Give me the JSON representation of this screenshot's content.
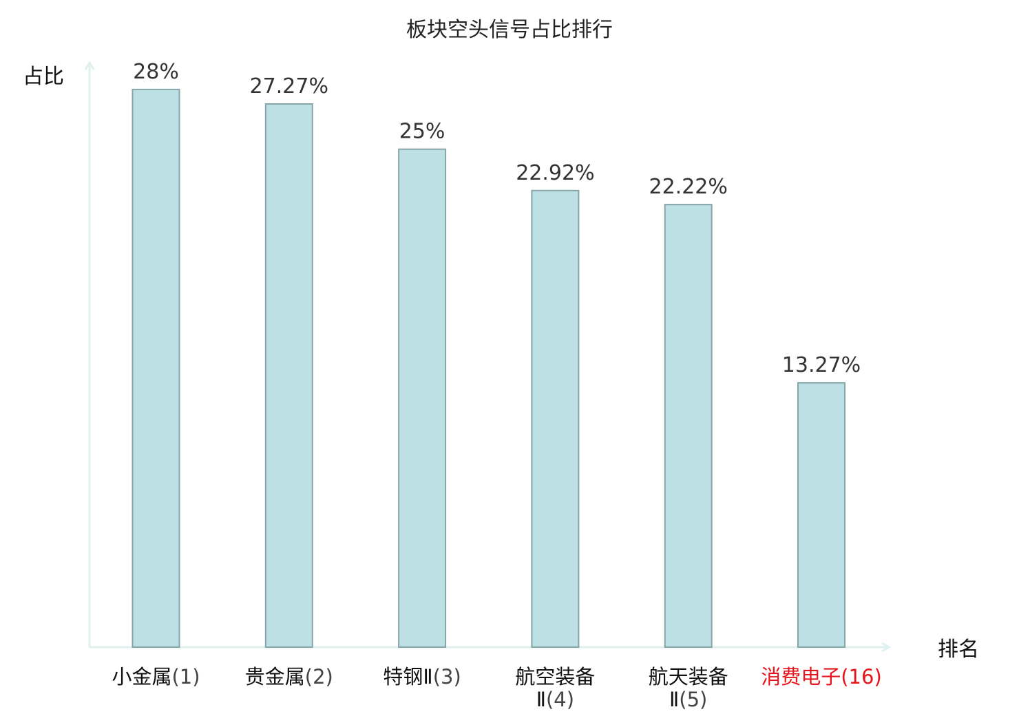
{
  "chart_data": {
    "type": "bar",
    "title": "板块空头信号占比排行",
    "ylabel": "占比",
    "xlabel": "排名",
    "ylim": [
      0,
      30
    ],
    "grid": false,
    "categories": [
      {
        "name": "小金属",
        "rank": "(1)",
        "lines": [
          "小金属(1)"
        ],
        "highlight": false
      },
      {
        "name": "贵金属",
        "rank": "(2)",
        "lines": [
          "贵金属(2)"
        ],
        "highlight": false
      },
      {
        "name": "特钢Ⅱ",
        "rank": "(3)",
        "lines": [
          "特钢Ⅱ(3)"
        ],
        "highlight": false
      },
      {
        "name": "航空装备Ⅱ",
        "rank": "(4)",
        "lines": [
          "航空装备",
          "Ⅱ(4)"
        ],
        "highlight": false
      },
      {
        "name": "航天装备Ⅱ",
        "rank": "(5)",
        "lines": [
          "航天装备",
          "Ⅱ(5)"
        ],
        "highlight": false
      },
      {
        "name": "消费电子",
        "rank": "(16)",
        "lines": [
          "消费电子(16)"
        ],
        "highlight": true
      }
    ],
    "values": [
      28,
      27.27,
      25,
      22.92,
      22.22,
      13.27
    ],
    "value_labels": [
      "28%",
      "27.27%",
      "25%",
      "22.92%",
      "22.22%",
      "13.27%"
    ]
  },
  "colors": {
    "bar_fill": "#bce0e3",
    "bar_stroke": "#86a5a8",
    "axis": "#dff0ee",
    "highlight": "#e8141b",
    "text": "#222222"
  }
}
